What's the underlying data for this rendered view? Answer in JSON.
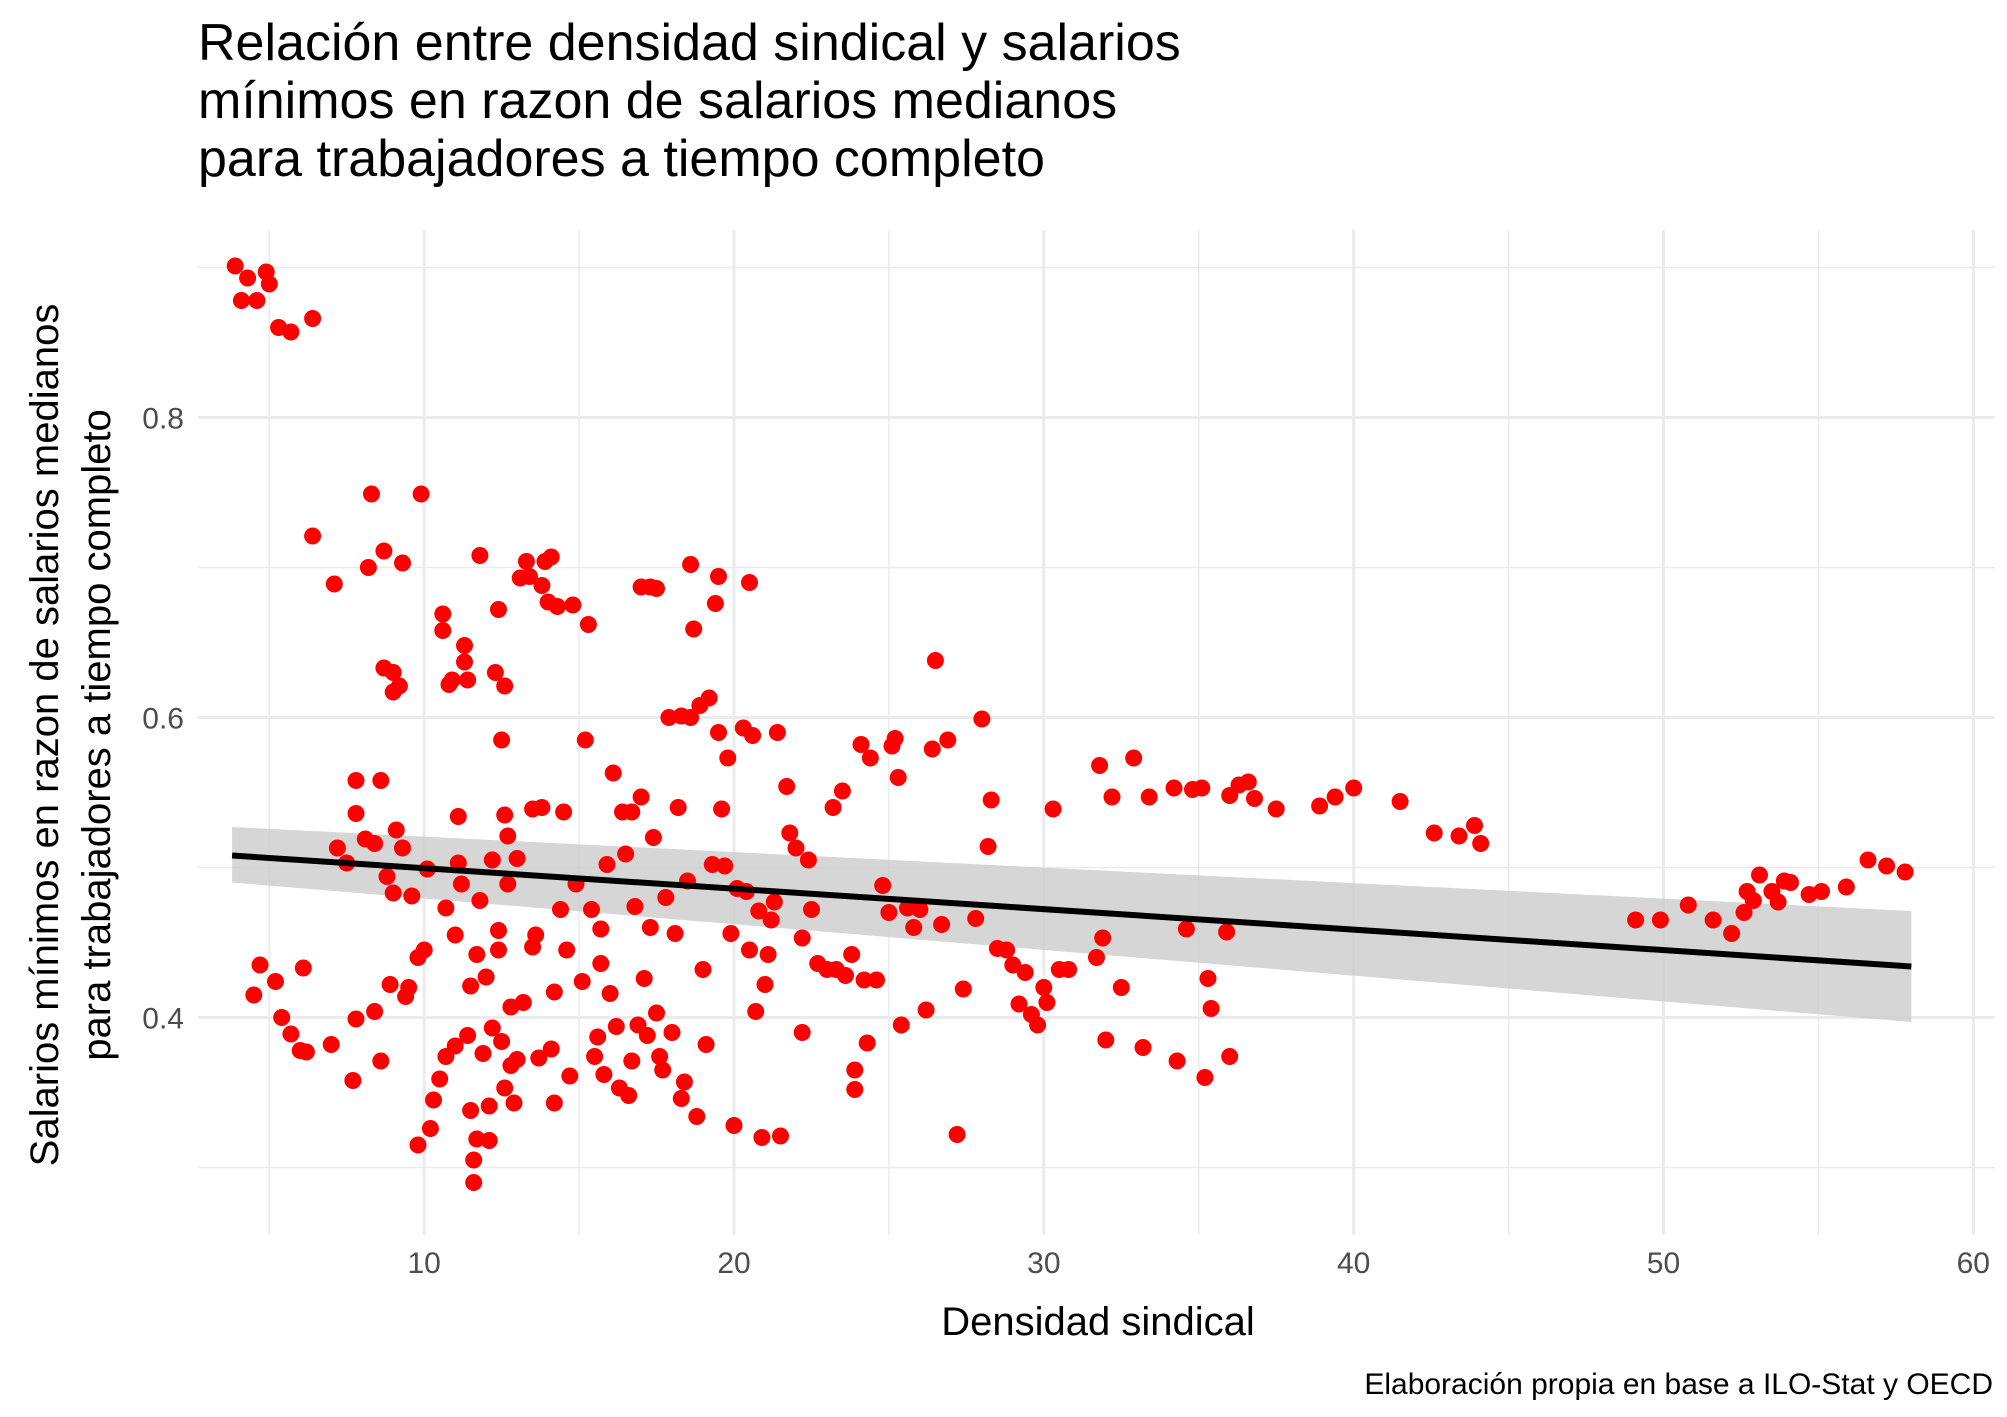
{
  "title": "Relación entre densidad sindical y salarios\nmínimos en razon de salarios medianos\npara trabajadores a tiempo completo",
  "xlabel": "Densidad sindical",
  "ylabel_line1": "Salarios mínimos en razon de salarios medianos",
  "ylabel_line2": "para trabajadores a tiempo completo",
  "caption": "Elaboración propia en base a ILO-Stat y OECD",
  "colors": {
    "points": "#ff0000",
    "trend": "#000000",
    "ribbon": "#cccccc",
    "grid": "#ebebeb"
  },
  "chart_data": {
    "type": "scatter",
    "title": "Relación entre densidad sindical y salarios mínimos en razon de salarios medianos para trabajadores a tiempo completo",
    "xlabel": "Densidad sindical",
    "ylabel": "Salarios mínimos en razon de salarios medianos para trabajadores a tiempo completo",
    "xlim": [
      2.7,
      60.7
    ],
    "ylim": [
      0.255,
      0.925
    ],
    "x_ticks": [
      10,
      20,
      30,
      40,
      50,
      60
    ],
    "y_ticks": [
      0.4,
      0.6,
      0.8
    ],
    "grid": true,
    "legend": "none",
    "trend_line": {
      "x": [
        3.8,
        58.0
      ],
      "y": [
        0.508,
        0.434
      ]
    },
    "confidence_band": {
      "x": [
        3.8,
        58.0
      ],
      "upper": [
        0.527,
        0.471
      ],
      "lower": [
        0.49,
        0.397
      ]
    },
    "points": [
      [
        3.9,
        0.901
      ],
      [
        4.1,
        0.878
      ],
      [
        4.3,
        0.893
      ],
      [
        4.6,
        0.878
      ],
      [
        4.9,
        0.897
      ],
      [
        5.0,
        0.889
      ],
      [
        5.3,
        0.86
      ],
      [
        5.7,
        0.857
      ],
      [
        6.4,
        0.866
      ],
      [
        4.5,
        0.415
      ],
      [
        4.7,
        0.435
      ],
      [
        5.2,
        0.424
      ],
      [
        5.4,
        0.4
      ],
      [
        5.7,
        0.389
      ],
      [
        6.0,
        0.378
      ],
      [
        6.2,
        0.377
      ],
      [
        6.1,
        0.433
      ],
      [
        6.4,
        0.721
      ],
      [
        7.1,
        0.689
      ],
      [
        7.0,
        0.382
      ],
      [
        7.2,
        0.513
      ],
      [
        7.5,
        0.503
      ],
      [
        7.7,
        0.358
      ],
      [
        7.8,
        0.399
      ],
      [
        7.8,
        0.536
      ],
      [
        7.8,
        0.558
      ],
      [
        8.1,
        0.519
      ],
      [
        8.2,
        0.7
      ],
      [
        8.3,
        0.749
      ],
      [
        8.4,
        0.516
      ],
      [
        8.4,
        0.404
      ],
      [
        8.6,
        0.558
      ],
      [
        8.6,
        0.371
      ],
      [
        8.7,
        0.633
      ],
      [
        8.7,
        0.711
      ],
      [
        8.8,
        0.494
      ],
      [
        8.9,
        0.422
      ],
      [
        9.0,
        0.617
      ],
      [
        9.0,
        0.63
      ],
      [
        9.0,
        0.483
      ],
      [
        9.1,
        0.525
      ],
      [
        9.2,
        0.621
      ],
      [
        9.3,
        0.703
      ],
      [
        9.3,
        0.513
      ],
      [
        9.4,
        0.414
      ],
      [
        9.5,
        0.42
      ],
      [
        9.6,
        0.481
      ],
      [
        9.8,
        0.44
      ],
      [
        9.8,
        0.315
      ],
      [
        10.0,
        0.445
      ],
      [
        9.9,
        0.749
      ],
      [
        10.1,
        0.499
      ],
      [
        10.2,
        0.326
      ],
      [
        10.3,
        0.345
      ],
      [
        10.5,
        0.359
      ],
      [
        10.6,
        0.669
      ],
      [
        10.6,
        0.658
      ],
      [
        10.7,
        0.374
      ],
      [
        10.7,
        0.473
      ],
      [
        10.8,
        0.622
      ],
      [
        10.9,
        0.625
      ],
      [
        11.0,
        0.381
      ],
      [
        11.0,
        0.455
      ],
      [
        11.1,
        0.503
      ],
      [
        11.1,
        0.534
      ],
      [
        11.2,
        0.489
      ],
      [
        11.3,
        0.648
      ],
      [
        11.3,
        0.637
      ],
      [
        11.4,
        0.625
      ],
      [
        11.4,
        0.388
      ],
      [
        11.5,
        0.421
      ],
      [
        11.5,
        0.338
      ],
      [
        11.6,
        0.305
      ],
      [
        11.6,
        0.29
      ],
      [
        11.7,
        0.319
      ],
      [
        11.7,
        0.442
      ],
      [
        11.8,
        0.478
      ],
      [
        11.8,
        0.708
      ],
      [
        11.9,
        0.376
      ],
      [
        12.0,
        0.427
      ],
      [
        12.1,
        0.341
      ],
      [
        12.1,
        0.318
      ],
      [
        12.2,
        0.393
      ],
      [
        12.2,
        0.505
      ],
      [
        12.3,
        0.63
      ],
      [
        12.4,
        0.445
      ],
      [
        12.4,
        0.458
      ],
      [
        12.4,
        0.672
      ],
      [
        12.5,
        0.384
      ],
      [
        12.5,
        0.585
      ],
      [
        12.6,
        0.621
      ],
      [
        12.6,
        0.535
      ],
      [
        12.6,
        0.353
      ],
      [
        12.7,
        0.521
      ],
      [
        12.7,
        0.489
      ],
      [
        12.8,
        0.407
      ],
      [
        12.8,
        0.368
      ],
      [
        12.9,
        0.343
      ],
      [
        13.0,
        0.506
      ],
      [
        13.0,
        0.372
      ],
      [
        13.1,
        0.693
      ],
      [
        13.2,
        0.41
      ],
      [
        13.3,
        0.704
      ],
      [
        13.4,
        0.694
      ],
      [
        13.5,
        0.539
      ],
      [
        13.5,
        0.447
      ],
      [
        13.6,
        0.455
      ],
      [
        13.7,
        0.373
      ],
      [
        13.8,
        0.688
      ],
      [
        13.8,
        0.54
      ],
      [
        13.9,
        0.704
      ],
      [
        14.0,
        0.677
      ],
      [
        14.1,
        0.707
      ],
      [
        14.1,
        0.379
      ],
      [
        14.2,
        0.343
      ],
      [
        14.2,
        0.417
      ],
      [
        14.3,
        0.674
      ],
      [
        14.4,
        0.472
      ],
      [
        14.5,
        0.537
      ],
      [
        14.6,
        0.445
      ],
      [
        14.7,
        0.361
      ],
      [
        14.8,
        0.675
      ],
      [
        14.9,
        0.489
      ],
      [
        15.1,
        0.424
      ],
      [
        15.2,
        0.585
      ],
      [
        15.3,
        0.662
      ],
      [
        15.4,
        0.472
      ],
      [
        15.5,
        0.374
      ],
      [
        15.6,
        0.387
      ],
      [
        15.7,
        0.459
      ],
      [
        15.7,
        0.436
      ],
      [
        15.8,
        0.362
      ],
      [
        15.9,
        0.502
      ],
      [
        16.0,
        0.416
      ],
      [
        16.1,
        0.563
      ],
      [
        16.2,
        0.394
      ],
      [
        16.3,
        0.353
      ],
      [
        16.4,
        0.537
      ],
      [
        16.5,
        0.509
      ],
      [
        16.6,
        0.348
      ],
      [
        16.7,
        0.371
      ],
      [
        16.7,
        0.537
      ],
      [
        16.8,
        0.474
      ],
      [
        16.9,
        0.395
      ],
      [
        17.0,
        0.687
      ],
      [
        17.0,
        0.547
      ],
      [
        17.1,
        0.426
      ],
      [
        17.2,
        0.388
      ],
      [
        17.3,
        0.687
      ],
      [
        17.3,
        0.46
      ],
      [
        17.4,
        0.52
      ],
      [
        17.5,
        0.686
      ],
      [
        17.5,
        0.403
      ],
      [
        17.6,
        0.374
      ],
      [
        17.7,
        0.365
      ],
      [
        17.8,
        0.48
      ],
      [
        17.9,
        0.6
      ],
      [
        18.0,
        0.39
      ],
      [
        18.1,
        0.456
      ],
      [
        18.2,
        0.54
      ],
      [
        18.3,
        0.346
      ],
      [
        18.3,
        0.601
      ],
      [
        18.4,
        0.357
      ],
      [
        18.5,
        0.491
      ],
      [
        18.6,
        0.6
      ],
      [
        18.6,
        0.702
      ],
      [
        18.7,
        0.659
      ],
      [
        18.8,
        0.334
      ],
      [
        18.9,
        0.608
      ],
      [
        19.0,
        0.432
      ],
      [
        19.1,
        0.382
      ],
      [
        19.2,
        0.613
      ],
      [
        19.3,
        0.502
      ],
      [
        19.4,
        0.676
      ],
      [
        19.5,
        0.694
      ],
      [
        19.5,
        0.59
      ],
      [
        19.6,
        0.539
      ],
      [
        19.7,
        0.501
      ],
      [
        19.8,
        0.573
      ],
      [
        19.9,
        0.456
      ],
      [
        20.0,
        0.328
      ],
      [
        20.1,
        0.486
      ],
      [
        20.3,
        0.593
      ],
      [
        20.4,
        0.484
      ],
      [
        20.5,
        0.445
      ],
      [
        20.5,
        0.69
      ],
      [
        20.6,
        0.588
      ],
      [
        20.7,
        0.404
      ],
      [
        20.8,
        0.471
      ],
      [
        20.9,
        0.32
      ],
      [
        21.0,
        0.422
      ],
      [
        21.1,
        0.442
      ],
      [
        21.2,
        0.465
      ],
      [
        21.3,
        0.477
      ],
      [
        21.4,
        0.59
      ],
      [
        21.5,
        0.321
      ],
      [
        21.7,
        0.554
      ],
      [
        21.8,
        0.523
      ],
      [
        22.0,
        0.513
      ],
      [
        22.2,
        0.453
      ],
      [
        22.2,
        0.39
      ],
      [
        22.4,
        0.505
      ],
      [
        22.5,
        0.472
      ],
      [
        22.7,
        0.436
      ],
      [
        23.0,
        0.432
      ],
      [
        23.2,
        0.54
      ],
      [
        23.3,
        0.432
      ],
      [
        23.5,
        0.551
      ],
      [
        23.6,
        0.428
      ],
      [
        23.8,
        0.442
      ],
      [
        23.9,
        0.365
      ],
      [
        23.9,
        0.352
      ],
      [
        24.1,
        0.582
      ],
      [
        24.2,
        0.425
      ],
      [
        24.3,
        0.383
      ],
      [
        24.4,
        0.573
      ],
      [
        24.6,
        0.425
      ],
      [
        24.8,
        0.488
      ],
      [
        25.0,
        0.47
      ],
      [
        25.1,
        0.581
      ],
      [
        25.2,
        0.586
      ],
      [
        25.3,
        0.56
      ],
      [
        25.4,
        0.395
      ],
      [
        25.6,
        0.473
      ],
      [
        25.8,
        0.46
      ],
      [
        26.0,
        0.472
      ],
      [
        26.2,
        0.405
      ],
      [
        26.4,
        0.579
      ],
      [
        26.5,
        0.638
      ],
      [
        26.7,
        0.462
      ],
      [
        26.9,
        0.585
      ],
      [
        27.2,
        0.322
      ],
      [
        27.4,
        0.419
      ],
      [
        27.8,
        0.466
      ],
      [
        28.0,
        0.599
      ],
      [
        28.2,
        0.514
      ],
      [
        28.3,
        0.545
      ],
      [
        28.5,
        0.446
      ],
      [
        28.8,
        0.445
      ],
      [
        29.0,
        0.435
      ],
      [
        29.2,
        0.409
      ],
      [
        29.4,
        0.43
      ],
      [
        29.6,
        0.402
      ],
      [
        29.8,
        0.395
      ],
      [
        30.0,
        0.42
      ],
      [
        30.1,
        0.41
      ],
      [
        30.3,
        0.539
      ],
      [
        30.5,
        0.432
      ],
      [
        30.8,
        0.432
      ],
      [
        31.7,
        0.44
      ],
      [
        31.8,
        0.568
      ],
      [
        31.9,
        0.453
      ],
      [
        32.0,
        0.385
      ],
      [
        32.2,
        0.547
      ],
      [
        32.5,
        0.42
      ],
      [
        32.9,
        0.573
      ],
      [
        33.2,
        0.38
      ],
      [
        33.4,
        0.547
      ],
      [
        34.2,
        0.553
      ],
      [
        34.3,
        0.371
      ],
      [
        34.6,
        0.459
      ],
      [
        34.8,
        0.552
      ],
      [
        35.1,
        0.553
      ],
      [
        35.2,
        0.36
      ],
      [
        35.3,
        0.426
      ],
      [
        35.4,
        0.406
      ],
      [
        35.9,
        0.457
      ],
      [
        36.0,
        0.548
      ],
      [
        36.0,
        0.374
      ],
      [
        36.3,
        0.555
      ],
      [
        36.6,
        0.557
      ],
      [
        36.8,
        0.546
      ],
      [
        37.5,
        0.539
      ],
      [
        38.9,
        0.541
      ],
      [
        39.4,
        0.547
      ],
      [
        40.0,
        0.553
      ],
      [
        41.5,
        0.544
      ],
      [
        42.6,
        0.523
      ],
      [
        43.4,
        0.521
      ],
      [
        43.9,
        0.528
      ],
      [
        44.1,
        0.516
      ],
      [
        49.1,
        0.465
      ],
      [
        49.9,
        0.465
      ],
      [
        50.8,
        0.475
      ],
      [
        51.6,
        0.465
      ],
      [
        52.2,
        0.456
      ],
      [
        52.6,
        0.47
      ],
      [
        52.7,
        0.484
      ],
      [
        52.9,
        0.478
      ],
      [
        53.1,
        0.495
      ],
      [
        53.5,
        0.484
      ],
      [
        53.7,
        0.477
      ],
      [
        53.9,
        0.491
      ],
      [
        54.1,
        0.49
      ],
      [
        54.7,
        0.482
      ],
      [
        55.1,
        0.484
      ],
      [
        55.9,
        0.487
      ],
      [
        56.6,
        0.505
      ],
      [
        57.2,
        0.501
      ],
      [
        57.8,
        0.497
      ]
    ]
  }
}
